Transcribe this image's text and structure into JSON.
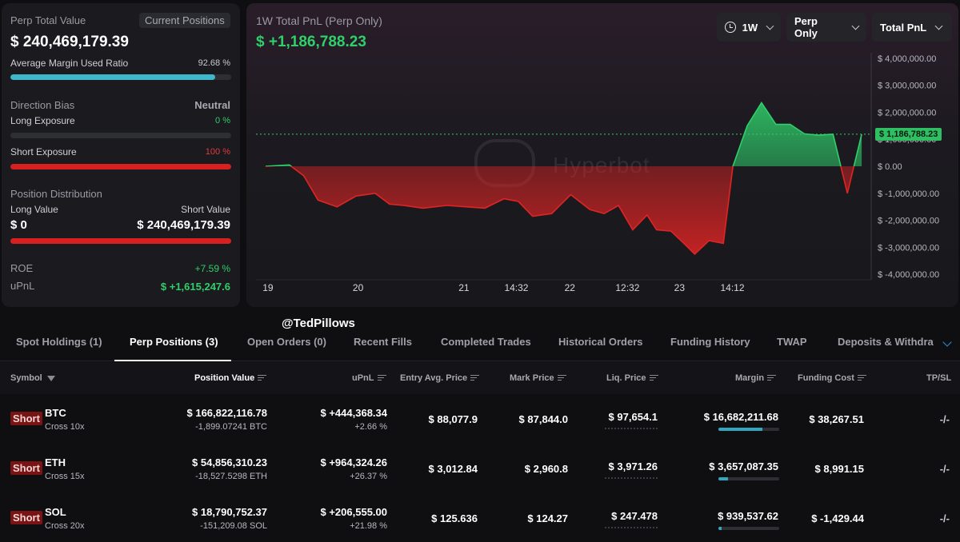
{
  "summary": {
    "perp_total_value_label": "Perp Total Value",
    "current_positions_label": "Current Positions",
    "perp_total_value": "$ 240,469,179.39",
    "avg_margin_label": "Average Margin Used Ratio",
    "avg_margin_value": "92.68 %",
    "avg_margin_fraction": 0.9268,
    "direction_bias_label": "Direction Bias",
    "direction_bias_value": "Neutral",
    "long_exposure_label": "Long Exposure",
    "long_exposure_value": "0 %",
    "long_exposure_fraction": 0,
    "short_exposure_label": "Short Exposure",
    "short_exposure_value": "100 %",
    "short_exposure_fraction": 1,
    "position_distribution_label": "Position Distribution",
    "long_value_label": "Long Value",
    "short_value_label": "Short Value",
    "long_value": "$ 0",
    "short_value": "$ 240,469,179.39",
    "roe_label": "ROE",
    "roe_value": "+7.59 %",
    "upnl_label": "uPnL",
    "upnl_value": "$ +1,615,247.6"
  },
  "chart": {
    "title": "1W Total PnL (Perp Only)",
    "value": "$ +1,186,788.23",
    "period_dropdown": "1W",
    "scope_dropdown": "Perp Only",
    "metric_dropdown": "Total PnL",
    "current_badge": "$ 1,186,788.23",
    "watermark": "Hyperbot",
    "colors": {
      "positive": "#2fcf6a",
      "negative": "#e02424"
    }
  },
  "chart_data": {
    "type": "area",
    "title": "1W Total PnL (Perp Only)",
    "y_ticks": [
      "$ 4,000,000.00",
      "$ 3,000,000.00",
      "$ 2,000,000.00",
      "$ 1,000,000.00",
      "$ 0.00",
      "$ -1,000,000.00",
      "$ -2,000,000.00",
      "$ -3,000,000.00",
      "$ -4,000,000.00"
    ],
    "y_tick_values": [
      4000000,
      3000000,
      2000000,
      1000000,
      0,
      -1000000,
      -2000000,
      -3000000,
      -4000000
    ],
    "ylim": [
      -4200000,
      4200000
    ],
    "x_ticks": [
      "19",
      "20",
      "21",
      "14:32",
      "22",
      "12:32",
      "23",
      "14:12"
    ],
    "x_tick_positions": [
      0.5,
      19.4,
      41.6,
      52.6,
      63.8,
      75.9,
      86.8,
      97.9
    ],
    "xlim": [
      -2,
      127
    ],
    "current_value": 1186788.23,
    "series": [
      {
        "x": [
          0,
          5,
          8,
          11,
          15,
          19,
          23,
          26,
          29,
          33,
          38,
          42,
          46,
          50,
          53,
          56,
          60,
          64,
          68,
          71,
          74,
          77,
          80,
          82,
          85,
          88,
          90,
          93,
          96,
          98,
          101,
          104,
          107,
          110,
          113,
          116,
          119,
          122,
          125
        ],
        "y": [
          0,
          50000,
          -350000,
          -1250000,
          -1500000,
          -1100000,
          -1000000,
          -1400000,
          -1450000,
          -1550000,
          -1450000,
          -1500000,
          -1550000,
          -1200000,
          -1300000,
          -1850000,
          -1750000,
          -1050000,
          -1600000,
          -1750000,
          -1450000,
          -2350000,
          -1800000,
          -2350000,
          -2400000,
          -2900000,
          -3250000,
          -2750000,
          -2850000,
          0,
          1500000,
          2350000,
          1550000,
          1550000,
          1200000,
          1150000,
          1186788.23,
          -1000000,
          1186788.23
        ]
      }
    ]
  },
  "handle": "@TedPillows",
  "tabs": [
    {
      "label": "Spot Holdings (1)"
    },
    {
      "label": "Perp Positions (3)"
    },
    {
      "label": "Open Orders (0)"
    },
    {
      "label": "Recent Fills"
    },
    {
      "label": "Completed Trades"
    },
    {
      "label": "Historical Orders"
    },
    {
      "label": "Funding History"
    },
    {
      "label": "TWAP"
    },
    {
      "label": "Deposits & Withdraw"
    }
  ],
  "table": {
    "headers": {
      "symbol": "Symbol",
      "position_value": "Position Value",
      "upnl": "uPnL",
      "entry": "Entry Avg. Price",
      "mark": "Mark Price",
      "liq": "Liq. Price",
      "margin": "Margin",
      "funding": "Funding Cost",
      "tpsl": "TP/SL"
    },
    "rows": [
      {
        "side": "Short",
        "symbol": "BTC",
        "leverage": "Cross 10x",
        "position_value": "$ 166,822,116.78",
        "size": "-1,899.07241 BTC",
        "upnl": "$ +444,368.34",
        "upnl_pct": "+2.66 %",
        "entry": "$ 88,077.9",
        "mark": "$ 87,844.0",
        "liq": "$ 97,654.1",
        "margin": "$ 16,682,211.68",
        "margin_fraction": 0.72,
        "funding": "$ 38,267.51",
        "funding_sign": "positive",
        "tpsl": "-/-"
      },
      {
        "side": "Short",
        "symbol": "ETH",
        "leverage": "Cross 15x",
        "position_value": "$ 54,856,310.23",
        "size": "-18,527.5298 ETH",
        "upnl": "$ +964,324.26",
        "upnl_pct": "+26.37 %",
        "entry": "$ 3,012.84",
        "mark": "$ 2,960.8",
        "liq": "$ 3,971.26",
        "margin": "$ 3,657,087.35",
        "margin_fraction": 0.16,
        "funding": "$ 8,991.15",
        "funding_sign": "positive",
        "tpsl": "-/-"
      },
      {
        "side": "Short",
        "symbol": "SOL",
        "leverage": "Cross 20x",
        "position_value": "$ 18,790,752.37",
        "size": "-151,209.08 SOL",
        "upnl": "$ +206,555.00",
        "upnl_pct": "+21.98 %",
        "entry": "$ 125.636",
        "mark": "$ 124.27",
        "liq": "$ 247.478",
        "margin": "$ 939,537.62",
        "margin_fraction": 0.05,
        "funding": "$ -1,429.44",
        "funding_sign": "negative",
        "tpsl": "-/-"
      }
    ]
  }
}
